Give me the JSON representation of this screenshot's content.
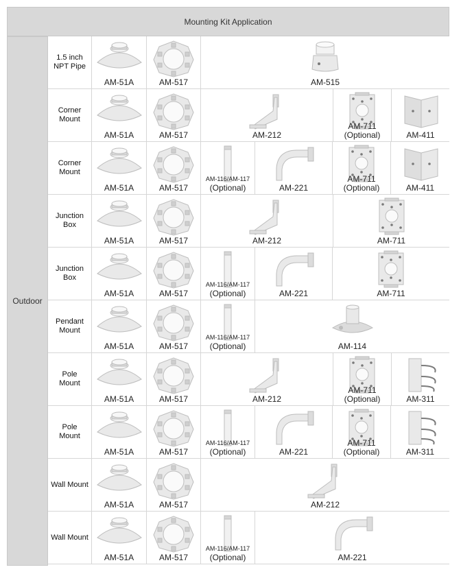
{
  "title": "Mounting Kit Application",
  "category": "Outdoor",
  "rows": [
    {
      "label": "1.5 inch NPT Pipe",
      "items": [
        {
          "model": "AM-51A",
          "icon": "dome-base-icon"
        },
        {
          "model": "AM-517",
          "icon": "adapter-plate-icon"
        },
        {
          "model": "AM-515",
          "icon": "pipe-adapter-icon"
        }
      ]
    },
    {
      "label": "Corner Mount",
      "items": [
        {
          "model": "AM-51A",
          "icon": "dome-base-icon"
        },
        {
          "model": "AM-517",
          "icon": "adapter-plate-icon"
        },
        {
          "model": "AM-212",
          "icon": "wall-bracket-icon"
        },
        {
          "model": "AM-711",
          "note": "(Optional)",
          "icon": "junction-box-icon"
        },
        {
          "model": "AM-411",
          "icon": "corner-bracket-icon"
        }
      ]
    },
    {
      "label": "Corner Mount",
      "items": [
        {
          "model": "AM-51A",
          "icon": "dome-base-icon"
        },
        {
          "model": "AM-517",
          "icon": "adapter-plate-icon"
        },
        {
          "model": "AM-116/AM-117",
          "note": "(Optional)",
          "icon": "extension-pipe-icon"
        },
        {
          "model": "AM-221",
          "icon": "gooseneck-arm-icon"
        },
        {
          "model": "AM-711",
          "note": "(Optional)",
          "icon": "junction-box-icon"
        },
        {
          "model": "AM-411",
          "icon": "corner-bracket-icon"
        }
      ]
    },
    {
      "label": "Junction Box",
      "items": [
        {
          "model": "AM-51A",
          "icon": "dome-base-icon"
        },
        {
          "model": "AM-517",
          "icon": "adapter-plate-icon"
        },
        {
          "model": "AM-212",
          "icon": "wall-bracket-icon"
        },
        {
          "model": "AM-711",
          "icon": "junction-box-icon"
        }
      ]
    },
    {
      "label": "Junction Box",
      "items": [
        {
          "model": "AM-51A",
          "icon": "dome-base-icon"
        },
        {
          "model": "AM-517",
          "icon": "adapter-plate-icon"
        },
        {
          "model": "AM-116/AM-117",
          "note": "(Optional)",
          "icon": "extension-pipe-icon"
        },
        {
          "model": "AM-221",
          "icon": "gooseneck-arm-icon"
        },
        {
          "model": "AM-711",
          "icon": "junction-box-icon"
        }
      ]
    },
    {
      "label": "Pendant Mount",
      "items": [
        {
          "model": "AM-51A",
          "icon": "dome-base-icon"
        },
        {
          "model": "AM-517",
          "icon": "adapter-plate-icon"
        },
        {
          "model": "AM-116/AM-117",
          "note": "(Optional)",
          "icon": "extension-pipe-icon"
        },
        {
          "model": "AM-114",
          "icon": "ceiling-flange-icon"
        }
      ]
    },
    {
      "label": "Pole Mount",
      "items": [
        {
          "model": "AM-51A",
          "icon": "dome-base-icon"
        },
        {
          "model": "AM-517",
          "icon": "adapter-plate-icon"
        },
        {
          "model": "AM-212",
          "icon": "wall-bracket-icon"
        },
        {
          "model": "AM-711",
          "note": "(Optional)",
          "icon": "junction-box-icon"
        },
        {
          "model": "AM-311",
          "icon": "pole-bracket-icon"
        }
      ]
    },
    {
      "label": "Pole Mount",
      "items": [
        {
          "model": "AM-51A",
          "icon": "dome-base-icon"
        },
        {
          "model": "AM-517",
          "icon": "adapter-plate-icon"
        },
        {
          "model": "AM-116/AM-117",
          "note": "(Optional)",
          "icon": "extension-pipe-icon"
        },
        {
          "model": "AM-221",
          "icon": "gooseneck-arm-icon"
        },
        {
          "model": "AM-711",
          "note": "(Optional)",
          "icon": "junction-box-icon"
        },
        {
          "model": "AM-311",
          "icon": "pole-bracket-icon"
        }
      ]
    },
    {
      "label": "Wall Mount",
      "items": [
        {
          "model": "AM-51A",
          "icon": "dome-base-icon"
        },
        {
          "model": "AM-517",
          "icon": "adapter-plate-icon"
        },
        {
          "model": "AM-212",
          "icon": "wall-bracket-icon"
        }
      ]
    },
    {
      "label": "Wall Mount",
      "items": [
        {
          "model": "AM-51A",
          "icon": "dome-base-icon"
        },
        {
          "model": "AM-517",
          "icon": "adapter-plate-icon"
        },
        {
          "model": "AM-116/AM-117",
          "note": "(Optional)",
          "icon": "extension-pipe-icon"
        },
        {
          "model": "AM-221",
          "icon": "gooseneck-arm-icon"
        }
      ]
    }
  ]
}
